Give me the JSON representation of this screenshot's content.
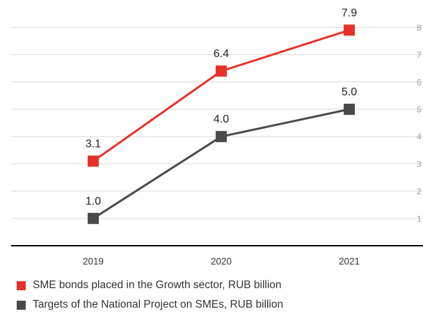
{
  "chart_data": {
    "type": "line",
    "categories": [
      "2019",
      "2020",
      "2021"
    ],
    "series": [
      {
        "name": "SME bonds placed in the Growth sector, RUB billion",
        "values": [
          3.1,
          6.4,
          7.9
        ],
        "color": "#e8302a",
        "marker": "square"
      },
      {
        "name": "Targets of the National Project on SMEs, RUB billion",
        "values": [
          1.0,
          4.0,
          5.0
        ],
        "color": "#4a4a4a",
        "marker": "square"
      }
    ],
    "y_ticks": [
      "1",
      "2",
      "3",
      "4",
      "5",
      "6",
      "7",
      "8"
    ],
    "ylim": [
      0,
      8.3
    ],
    "axis_color": "#000000",
    "grid": true,
    "grid_color": "#d9d9d9",
    "data_labels": true,
    "legend": "bottom-left"
  }
}
